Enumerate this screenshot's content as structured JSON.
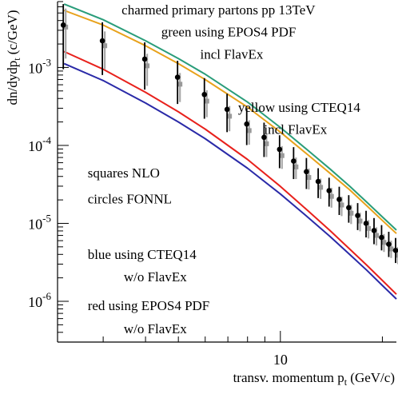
{
  "chart_data": {
    "type": "line",
    "title": "charmed primary partons  pp 13TeV",
    "xlabel": "transv. momentum p_t (GeV/c)",
    "ylabel": "dn/dydp_t (c/GeV)",
    "x_scale": "log",
    "y_scale": "log",
    "xlim": [
      2.2,
      22
    ],
    "ylim": [
      3e-07,
      0.007
    ],
    "x_ticks": [
      {
        "value": 10,
        "label": "10"
      }
    ],
    "y_ticks": [
      {
        "value": 0.001,
        "base": "10",
        "exp": "-3"
      },
      {
        "value": 0.0001,
        "base": "10",
        "exp": "-4"
      },
      {
        "value": 1e-05,
        "base": "10",
        "exp": "-5"
      },
      {
        "value": 1e-06,
        "base": "10",
        "exp": "-6"
      }
    ],
    "annotations": [
      {
        "text": "charmed primary partons  pp 13TeV",
        "x": 3.4,
        "y": 0.0048
      },
      {
        "text": "green  using EPOS4 PDF",
        "x": 4.45,
        "y": 0.0025
      },
      {
        "text": "incl FlavEx",
        "x": 5.8,
        "y": 0.0013
      },
      {
        "text": "yellow using CTEQ14",
        "x": 7.5,
        "y": 0.00027
      },
      {
        "text": "incl FlavEx",
        "x": 8.95,
        "y": 0.00014
      },
      {
        "text": "squares NLO",
        "x": 2.7,
        "y": 3.9e-05
      },
      {
        "text": "circles FONNL",
        "x": 2.7,
        "y": 1.8e-05
      },
      {
        "text": "blue using CTEQ14",
        "x": 2.7,
        "y": 3.5e-06
      },
      {
        "text": "w/o FlavEx",
        "x": 3.45,
        "y": 1.8e-06
      },
      {
        "text": "red  using EPOS4 PDF",
        "x": 2.7,
        "y": 7.7e-07
      },
      {
        "text": "w/o FlavEx",
        "x": 3.45,
        "y": 3.9e-07
      }
    ],
    "series": [
      {
        "color": "#2a9d7a",
        "x": [
          2.3,
          3,
          4,
          5,
          6,
          8,
          10,
          12,
          14,
          16,
          18,
          20,
          22
        ],
        "y": [
          0.0065,
          0.0041,
          0.0022,
          0.0013,
          0.00082,
          0.00036,
          0.00017,
          8.8e-05,
          5e-05,
          3e-05,
          1.87e-05,
          1.21e-05,
          8.2e-06
        ]
      },
      {
        "color": "#e8a21c",
        "x": [
          2.3,
          3,
          4,
          5,
          6,
          8,
          10,
          12,
          14,
          16,
          18,
          20,
          22
        ],
        "y": [
          0.0054,
          0.0035,
          0.0019,
          0.00112,
          0.0007,
          0.00031,
          0.000148,
          7.7e-05,
          4.4e-05,
          2.7e-05,
          1.68e-05,
          1.09e-05,
          7.4e-06
        ]
      },
      {
        "color": "#e8211c",
        "x": [
          2.3,
          3,
          4,
          5,
          6,
          8,
          10,
          12,
          14,
          16,
          18,
          20,
          22
        ],
        "y": [
          0.0016,
          0.00095,
          0.00048,
          0.00027,
          0.000162,
          6.6e-05,
          2.98e-05,
          1.48e-05,
          8.1e-06,
          4.7e-06,
          2.9e-06,
          1.85e-06,
          1.23e-06
        ]
      },
      {
        "color": "#2a2aa8",
        "x": [
          2.3,
          3,
          4,
          5,
          6,
          8,
          10,
          12,
          14,
          16,
          18,
          20,
          22
        ],
        "y": [
          0.00112,
          0.00068,
          0.00035,
          0.0002,
          0.000122,
          5.1e-05,
          2.38e-05,
          1.22e-05,
          6.8e-06,
          4e-06,
          2.5e-06,
          1.6e-06,
          1.07e-06
        ]
      }
    ],
    "points_fonll": {
      "marker": "circle",
      "color": "#000000",
      "x": [
        2.3,
        3,
        4,
        5,
        6,
        7,
        8,
        9,
        10,
        11,
        12,
        13,
        14,
        15,
        16,
        17,
        18,
        19,
        20,
        21,
        22
      ],
      "y": [
        0.0035,
        0.0022,
        0.00128,
        0.00075,
        0.00045,
        0.00029,
        0.000188,
        0.000127,
        8.9e-05,
        6.3e-05,
        4.6e-05,
        3.45e-05,
        2.63e-05,
        2.03e-05,
        1.59e-05,
        1.26e-05,
        1e-05,
        8.1e-06,
        6.6e-06,
        5.4e-06,
        4.5e-06
      ],
      "y_low": [
        0.00095,
        0.0008,
        0.00052,
        0.00034,
        0.00022,
        0.000148,
        0.000101,
        7.1e-05,
        5.1e-05,
        3.7e-05,
        2.76e-05,
        2.11e-05,
        1.64e-05,
        1.28e-05,
        1.02e-05,
        8.2e-06,
        6.6e-06,
        5.4e-06,
        4.5e-06,
        3.7e-06,
        3.1e-06
      ],
      "y_high": [
        0.0065,
        0.0038,
        0.0021,
        0.00122,
        0.00073,
        0.00046,
        0.000295,
        0.000196,
        0.000135,
        9.5e-05,
        6.9e-05,
        5.1e-05,
        3.85e-05,
        2.95e-05,
        2.3e-05,
        1.82e-05,
        1.45e-05,
        1.17e-05,
        9.5e-06,
        7.8e-06,
        6.5e-06
      ]
    },
    "points_nlo": {
      "marker": "square",
      "color": "#999999",
      "x": [
        2.3,
        3,
        4,
        5,
        6,
        7,
        8,
        9,
        10,
        11,
        12,
        13,
        14,
        15,
        16,
        17,
        18,
        19,
        20,
        21,
        22
      ],
      "y": [
        0.0033,
        0.0019,
        0.00105,
        0.00061,
        0.00037,
        0.000237,
        0.000155,
        0.000105,
        7.4e-05,
        5.3e-05,
        3.88e-05,
        2.9e-05,
        2.22e-05,
        1.72e-05,
        1.35e-05,
        1.07e-05,
        8.6e-06,
        7e-06,
        5.7e-06,
        4.7e-06,
        3.9e-06
      ],
      "y_low": [
        0.0013,
        0.00095,
        0.00058,
        0.00036,
        0.00023,
        0.000152,
        0.000102,
        7.1e-05,
        5e-05,
        3.7e-05,
        2.72e-05,
        2.06e-05,
        1.59e-05,
        1.24e-05,
        9.8e-06,
        7.9e-06,
        6.4e-06,
        5.2e-06,
        4.3e-06,
        3.6e-06,
        3e-06
      ],
      "y_high": [
        0.0057,
        0.0029,
        0.0015,
        0.00085,
        0.00051,
        0.00032,
        0.00021,
        0.000141,
        9.8e-05,
        7e-05,
        5.05e-05,
        3.75e-05,
        2.86e-05,
        2.2e-05,
        1.73e-05,
        1.37e-05,
        1.1e-05,
        8.9e-06,
        7.3e-06,
        6e-06,
        5e-06
      ]
    }
  }
}
